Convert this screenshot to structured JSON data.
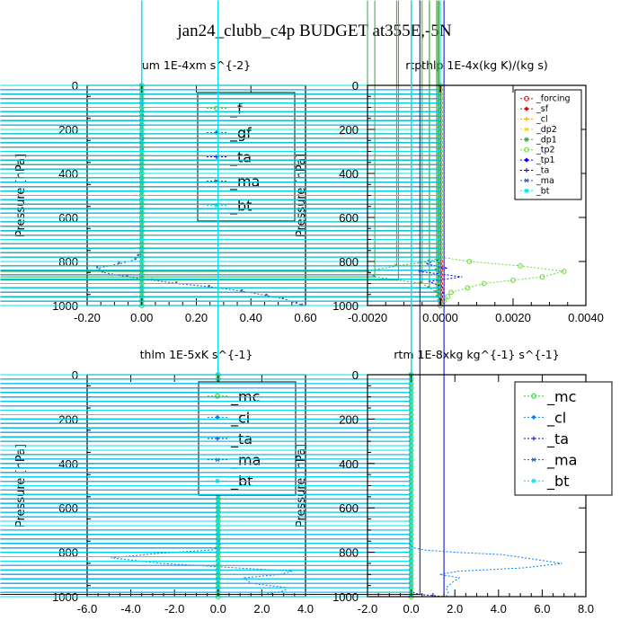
{
  "title": "jan24_clubb_c4p  BUDGET at355E,-5N",
  "chart_data": [
    {
      "type": "line",
      "title": "um   1E-4xm s^{-2}",
      "ylabel": "Pressure [hPa]",
      "xlim": [
        -0.2,
        0.6
      ],
      "ylim": [
        1000,
        0
      ],
      "xticks": [
        "-0.20",
        "0.00",
        "0.20",
        "0.40",
        "0.60"
      ],
      "yticks": [
        "0",
        "200",
        "400",
        "600",
        "800",
        "1000"
      ],
      "legend_position": "top-right",
      "series": [
        {
          "name": "_f",
          "color": "#33cc33",
          "points": [
            [
              0.0,
              0
            ],
            [
              0.0,
              1000
            ]
          ]
        },
        {
          "name": "_gf",
          "color": "#0080ff",
          "points": [
            [
              0.0,
              0
            ],
            [
              0.003,
              100
            ],
            [
              0.005,
              140
            ],
            [
              0.0,
              160
            ],
            [
              -0.005,
              180
            ],
            [
              0.003,
              200
            ],
            [
              -0.006,
              230
            ],
            [
              0.008,
              240
            ],
            [
              -0.004,
              265
            ],
            [
              0.006,
              285
            ],
            [
              0.0,
              310
            ],
            [
              0.0,
              1000
            ]
          ]
        },
        {
          "name": "_ta",
          "color": "#0000cc",
          "points": [
            [
              0.0,
              0
            ],
            [
              0.0,
              1000
            ]
          ]
        },
        {
          "name": "_ma",
          "color": "#1a56b0",
          "points": [
            [
              0.0,
              0
            ],
            [
              0.0,
              760
            ],
            [
              -0.02,
              790
            ],
            [
              -0.08,
              810
            ],
            [
              -0.16,
              830
            ],
            [
              -0.14,
              850
            ],
            [
              -0.05,
              870
            ],
            [
              0.13,
              900
            ],
            [
              0.25,
              915
            ],
            [
              0.37,
              935
            ],
            [
              0.46,
              955
            ],
            [
              0.52,
              970
            ],
            [
              0.57,
              990
            ],
            [
              0.59,
              1000
            ]
          ]
        },
        {
          "name": "_bt",
          "color": "#00e5ee",
          "points": [
            [
              0.0,
              0
            ],
            [
              0.0,
              1000
            ]
          ]
        }
      ]
    },
    {
      "type": "line",
      "title": "rtpthlp   1E-4x(kg K)/(kg s)",
      "ylabel": "Pressure [hPa]",
      "xlim": [
        -0.002,
        0.004
      ],
      "ylim": [
        1000,
        0
      ],
      "xticks": [
        "-0.0020",
        "0.0000",
        "0.0020",
        "0.0040"
      ],
      "yticks": [
        "0",
        "200",
        "400",
        "600",
        "800",
        "1000"
      ],
      "legend_position": "top-right",
      "series": [
        {
          "name": "_forcing",
          "color": "#ff0000",
          "points": [
            [
              0.0,
              0
            ],
            [
              0.0,
              1000
            ]
          ]
        },
        {
          "name": "_sf",
          "color": "#e60000",
          "points": [
            [
              0.0,
              0
            ],
            [
              0.0,
              1000
            ]
          ]
        },
        {
          "name": "_cl",
          "color": "#ff9900",
          "points": [
            [
              0.0,
              0
            ],
            [
              0.0,
              1000
            ]
          ]
        },
        {
          "name": "_dp2",
          "color": "#ffcc00",
          "points": [
            [
              0.0,
              0
            ],
            [
              0.0,
              1000
            ]
          ]
        },
        {
          "name": "_dp1",
          "color": "#33aa33",
          "points": [
            [
              0.0,
              0
            ],
            [
              0.0,
              780
            ],
            [
              -0.0003,
              800
            ],
            [
              -0.0012,
              820
            ],
            [
              -0.002,
              845
            ],
            [
              -0.0018,
              870
            ],
            [
              -0.0005,
              900
            ],
            [
              -0.0001,
              940
            ],
            [
              0.0,
              1000
            ]
          ]
        },
        {
          "name": "_tp2",
          "color": "#66dd33",
          "points": [
            [
              0.0,
              0
            ],
            [
              0.0,
              780
            ],
            [
              0.0008,
              800
            ],
            [
              0.0022,
              820
            ],
            [
              0.0034,
              845
            ],
            [
              0.0028,
              870
            ],
            [
              0.0012,
              900
            ],
            [
              0.0003,
              940
            ],
            [
              0.0,
              1000
            ]
          ]
        },
        {
          "name": "_tp1",
          "color": "#0000ff",
          "points": [
            [
              0.0,
              0
            ],
            [
              0.0,
              790
            ],
            [
              -0.0004,
              810
            ],
            [
              0.0002,
              830
            ],
            [
              -0.0006,
              845
            ],
            [
              0.0006,
              870
            ],
            [
              -0.0003,
              890
            ],
            [
              0.0001,
              920
            ],
            [
              0.0,
              1000
            ]
          ]
        },
        {
          "name": "_ta",
          "color": "#0000aa",
          "points": [
            [
              0.0,
              0
            ],
            [
              0.0,
              1000
            ]
          ]
        },
        {
          "name": "_ma",
          "color": "#1a56b0",
          "points": [
            [
              0.0,
              0
            ],
            [
              0.0,
              1000
            ]
          ]
        },
        {
          "name": "_bt",
          "color": "#00e5ee",
          "points": [
            [
              0.0,
              0
            ],
            [
              0.0,
              1000
            ]
          ]
        }
      ]
    },
    {
      "type": "line",
      "title": "thlm   1E-5xK s^{-1}",
      "ylabel": "Pressure [hPa]",
      "xlim": [
        -6.0,
        4.0
      ],
      "ylim": [
        1000,
        0
      ],
      "xticks": [
        "-6.0",
        "-4.0",
        "-2.0",
        "0.0",
        "2.0",
        "4.0"
      ],
      "yticks": [
        "0",
        "200",
        "400",
        "600",
        "800",
        "1000"
      ],
      "legend_position": "top-right",
      "series": [
        {
          "name": "_mc",
          "color": "#33cc33",
          "points": [
            [
              0.0,
              0
            ],
            [
              0.0,
              1000
            ]
          ]
        },
        {
          "name": "_cl",
          "color": "#0080ff",
          "points": [
            [
              0.0,
              0
            ],
            [
              0.0,
              740
            ],
            [
              0.1,
              760
            ],
            [
              0.0,
              780
            ],
            [
              -0.3,
              790
            ],
            [
              -2.7,
              805
            ],
            [
              -4.9,
              825
            ],
            [
              -2.6,
              850
            ],
            [
              0.8,
              870
            ],
            [
              3.4,
              885
            ],
            [
              2.8,
              900
            ],
            [
              1.2,
              915
            ],
            [
              1.5,
              940
            ],
            [
              3.2,
              960
            ],
            [
              3.0,
              975
            ],
            [
              2.1,
              990
            ],
            [
              2.0,
              1000
            ]
          ]
        },
        {
          "name": "_ta",
          "color": "#0000cc",
          "points": [
            [
              0.0,
              0
            ],
            [
              0.0,
              1000
            ]
          ]
        },
        {
          "name": "_ma",
          "color": "#1a56b0",
          "points": [
            [
              0.0,
              0
            ],
            [
              0.0,
              1000
            ]
          ]
        },
        {
          "name": "_bt",
          "color": "#00e5ee",
          "points": [
            [
              0.0,
              0
            ],
            [
              0.0,
              1000
            ]
          ]
        }
      ]
    },
    {
      "type": "line",
      "title": "rtm   1E-8xkg kg^{-1} s^{-1}",
      "ylabel": "Pressure [hPa]",
      "xlim": [
        -2.0,
        8.0
      ],
      "ylim": [
        1000,
        0
      ],
      "xticks": [
        "-2.0",
        "0.0",
        "2.0",
        "4.0",
        "6.0",
        "8.0"
      ],
      "yticks": [
        "0",
        "200",
        "400",
        "600",
        "800",
        "1000"
      ],
      "legend_position": "top-right",
      "series": [
        {
          "name": "_mc",
          "color": "#33cc33",
          "points": [
            [
              0.0,
              0
            ],
            [
              0.0,
              1000
            ]
          ]
        },
        {
          "name": "_cl",
          "color": "#0080ff",
          "points": [
            [
              0.0,
              0
            ],
            [
              0.0,
              740
            ],
            [
              -0.1,
              760
            ],
            [
              0.1,
              780
            ],
            [
              0.6,
              790
            ],
            [
              2.0,
              800
            ],
            [
              4.1,
              810
            ],
            [
              5.2,
              825
            ],
            [
              6.9,
              850
            ],
            [
              5.2,
              870
            ],
            [
              2.2,
              885
            ],
            [
              1.3,
              900
            ],
            [
              2.2,
              915
            ],
            [
              1.9,
              935
            ],
            [
              1.6,
              960
            ],
            [
              1.7,
              980
            ],
            [
              1.6,
              1000
            ]
          ]
        },
        {
          "name": "_ta",
          "color": "#0000cc",
          "points": [
            [
              0.0,
              0
            ],
            [
              0.0,
              980
            ],
            [
              0.4,
              990
            ],
            [
              1.5,
              1000
            ]
          ]
        },
        {
          "name": "_ma",
          "color": "#1a56b0",
          "points": [
            [
              0.0,
              0
            ],
            [
              0.0,
              1000
            ]
          ]
        },
        {
          "name": "_bt",
          "color": "#00e5ee",
          "points": [
            [
              0.0,
              0
            ],
            [
              0.0,
              1000
            ]
          ]
        }
      ]
    }
  ]
}
